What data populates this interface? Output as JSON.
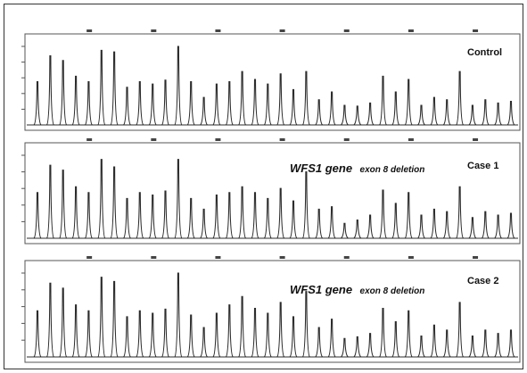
{
  "chart_data": [
    {
      "type": "line",
      "panel": "Control",
      "label": "Control",
      "annotation": "",
      "annotation_suffix": "",
      "peaks": [
        {
          "x": 1,
          "y": 0.55
        },
        {
          "x": 2,
          "y": 0.88
        },
        {
          "x": 3,
          "y": 0.82
        },
        {
          "x": 4,
          "y": 0.62
        },
        {
          "x": 5,
          "y": 0.55
        },
        {
          "x": 6,
          "y": 0.95
        },
        {
          "x": 7,
          "y": 0.93
        },
        {
          "x": 8,
          "y": 0.48
        },
        {
          "x": 9,
          "y": 0.55
        },
        {
          "x": 10,
          "y": 0.52
        },
        {
          "x": 11,
          "y": 0.57
        },
        {
          "x": 12,
          "y": 1.0
        },
        {
          "x": 13,
          "y": 0.55
        },
        {
          "x": 14,
          "y": 0.35
        },
        {
          "x": 15,
          "y": 0.52
        },
        {
          "x": 16,
          "y": 0.55
        },
        {
          "x": 17,
          "y": 0.68
        },
        {
          "x": 18,
          "y": 0.58
        },
        {
          "x": 19,
          "y": 0.52
        },
        {
          "x": 20,
          "y": 0.65
        },
        {
          "x": 21,
          "y": 0.45
        },
        {
          "x": 22,
          "y": 0.68
        },
        {
          "x": 23,
          "y": 0.32
        },
        {
          "x": 24,
          "y": 0.42
        },
        {
          "x": 25,
          "y": 0.25
        },
        {
          "x": 26,
          "y": 0.24
        },
        {
          "x": 27,
          "y": 0.28
        },
        {
          "x": 28,
          "y": 0.62
        },
        {
          "x": 29,
          "y": 0.42
        },
        {
          "x": 30,
          "y": 0.58
        },
        {
          "x": 31,
          "y": 0.25
        },
        {
          "x": 32,
          "y": 0.35
        },
        {
          "x": 33,
          "y": 0.32
        },
        {
          "x": 34,
          "y": 0.68
        },
        {
          "x": 35,
          "y": 0.25
        },
        {
          "x": 36,
          "y": 0.32
        },
        {
          "x": 37,
          "y": 0.28
        },
        {
          "x": 38,
          "y": 0.3
        }
      ]
    },
    {
      "type": "line",
      "panel": "Case 1",
      "label": "Case 1",
      "annotation": "WFS1 gene",
      "annotation_suffix": "exon 8 deletion",
      "peaks": [
        {
          "x": 1,
          "y": 0.55
        },
        {
          "x": 2,
          "y": 0.88
        },
        {
          "x": 3,
          "y": 0.82
        },
        {
          "x": 4,
          "y": 0.62
        },
        {
          "x": 5,
          "y": 0.55
        },
        {
          "x": 6,
          "y": 0.95
        },
        {
          "x": 7,
          "y": 0.86
        },
        {
          "x": 8,
          "y": 0.48
        },
        {
          "x": 9,
          "y": 0.55
        },
        {
          "x": 10,
          "y": 0.52
        },
        {
          "x": 11,
          "y": 0.57
        },
        {
          "x": 12,
          "y": 0.95
        },
        {
          "x": 13,
          "y": 0.48
        },
        {
          "x": 14,
          "y": 0.35
        },
        {
          "x": 15,
          "y": 0.52
        },
        {
          "x": 16,
          "y": 0.55
        },
        {
          "x": 17,
          "y": 0.62
        },
        {
          "x": 18,
          "y": 0.55
        },
        {
          "x": 19,
          "y": 0.48
        },
        {
          "x": 20,
          "y": 0.6
        },
        {
          "x": 21,
          "y": 0.45
        },
        {
          "x": 22,
          "y": 0.8
        },
        {
          "x": 23,
          "y": 0.35
        },
        {
          "x": 24,
          "y": 0.38
        },
        {
          "x": 25,
          "y": 0.18
        },
        {
          "x": 26,
          "y": 0.22
        },
        {
          "x": 27,
          "y": 0.28
        },
        {
          "x": 28,
          "y": 0.58
        },
        {
          "x": 29,
          "y": 0.42
        },
        {
          "x": 30,
          "y": 0.55
        },
        {
          "x": 31,
          "y": 0.28
        },
        {
          "x": 32,
          "y": 0.35
        },
        {
          "x": 33,
          "y": 0.32
        },
        {
          "x": 34,
          "y": 0.62
        },
        {
          "x": 35,
          "y": 0.25
        },
        {
          "x": 36,
          "y": 0.32
        },
        {
          "x": 37,
          "y": 0.28
        },
        {
          "x": 38,
          "y": 0.3
        }
      ]
    },
    {
      "type": "line",
      "panel": "Case 2",
      "label": "Case 2",
      "annotation": "WFS1 gene",
      "annotation_suffix": "exon 8 deletion",
      "peaks": [
        {
          "x": 1,
          "y": 0.55
        },
        {
          "x": 2,
          "y": 0.88
        },
        {
          "x": 3,
          "y": 0.82
        },
        {
          "x": 4,
          "y": 0.62
        },
        {
          "x": 5,
          "y": 0.55
        },
        {
          "x": 6,
          "y": 0.95
        },
        {
          "x": 7,
          "y": 0.9
        },
        {
          "x": 8,
          "y": 0.48
        },
        {
          "x": 9,
          "y": 0.55
        },
        {
          "x": 10,
          "y": 0.52
        },
        {
          "x": 11,
          "y": 0.57
        },
        {
          "x": 12,
          "y": 1.0
        },
        {
          "x": 13,
          "y": 0.5
        },
        {
          "x": 14,
          "y": 0.35
        },
        {
          "x": 15,
          "y": 0.52
        },
        {
          "x": 16,
          "y": 0.62
        },
        {
          "x": 17,
          "y": 0.72
        },
        {
          "x": 18,
          "y": 0.58
        },
        {
          "x": 19,
          "y": 0.52
        },
        {
          "x": 20,
          "y": 0.65
        },
        {
          "x": 21,
          "y": 0.48
        },
        {
          "x": 22,
          "y": 0.78
        },
        {
          "x": 23,
          "y": 0.35
        },
        {
          "x": 24,
          "y": 0.45
        },
        {
          "x": 25,
          "y": 0.22
        },
        {
          "x": 26,
          "y": 0.24
        },
        {
          "x": 27,
          "y": 0.28
        },
        {
          "x": 28,
          "y": 0.58
        },
        {
          "x": 29,
          "y": 0.42
        },
        {
          "x": 30,
          "y": 0.55
        },
        {
          "x": 31,
          "y": 0.25
        },
        {
          "x": 32,
          "y": 0.38
        },
        {
          "x": 33,
          "y": 0.32
        },
        {
          "x": 34,
          "y": 0.65
        },
        {
          "x": 35,
          "y": 0.25
        },
        {
          "x": 36,
          "y": 0.32
        },
        {
          "x": 37,
          "y": 0.28
        },
        {
          "x": 38,
          "y": 0.32
        }
      ]
    }
  ],
  "colors": {
    "trace": "#2b2b2b",
    "frame": "#333333",
    "background": "#ffffff"
  }
}
